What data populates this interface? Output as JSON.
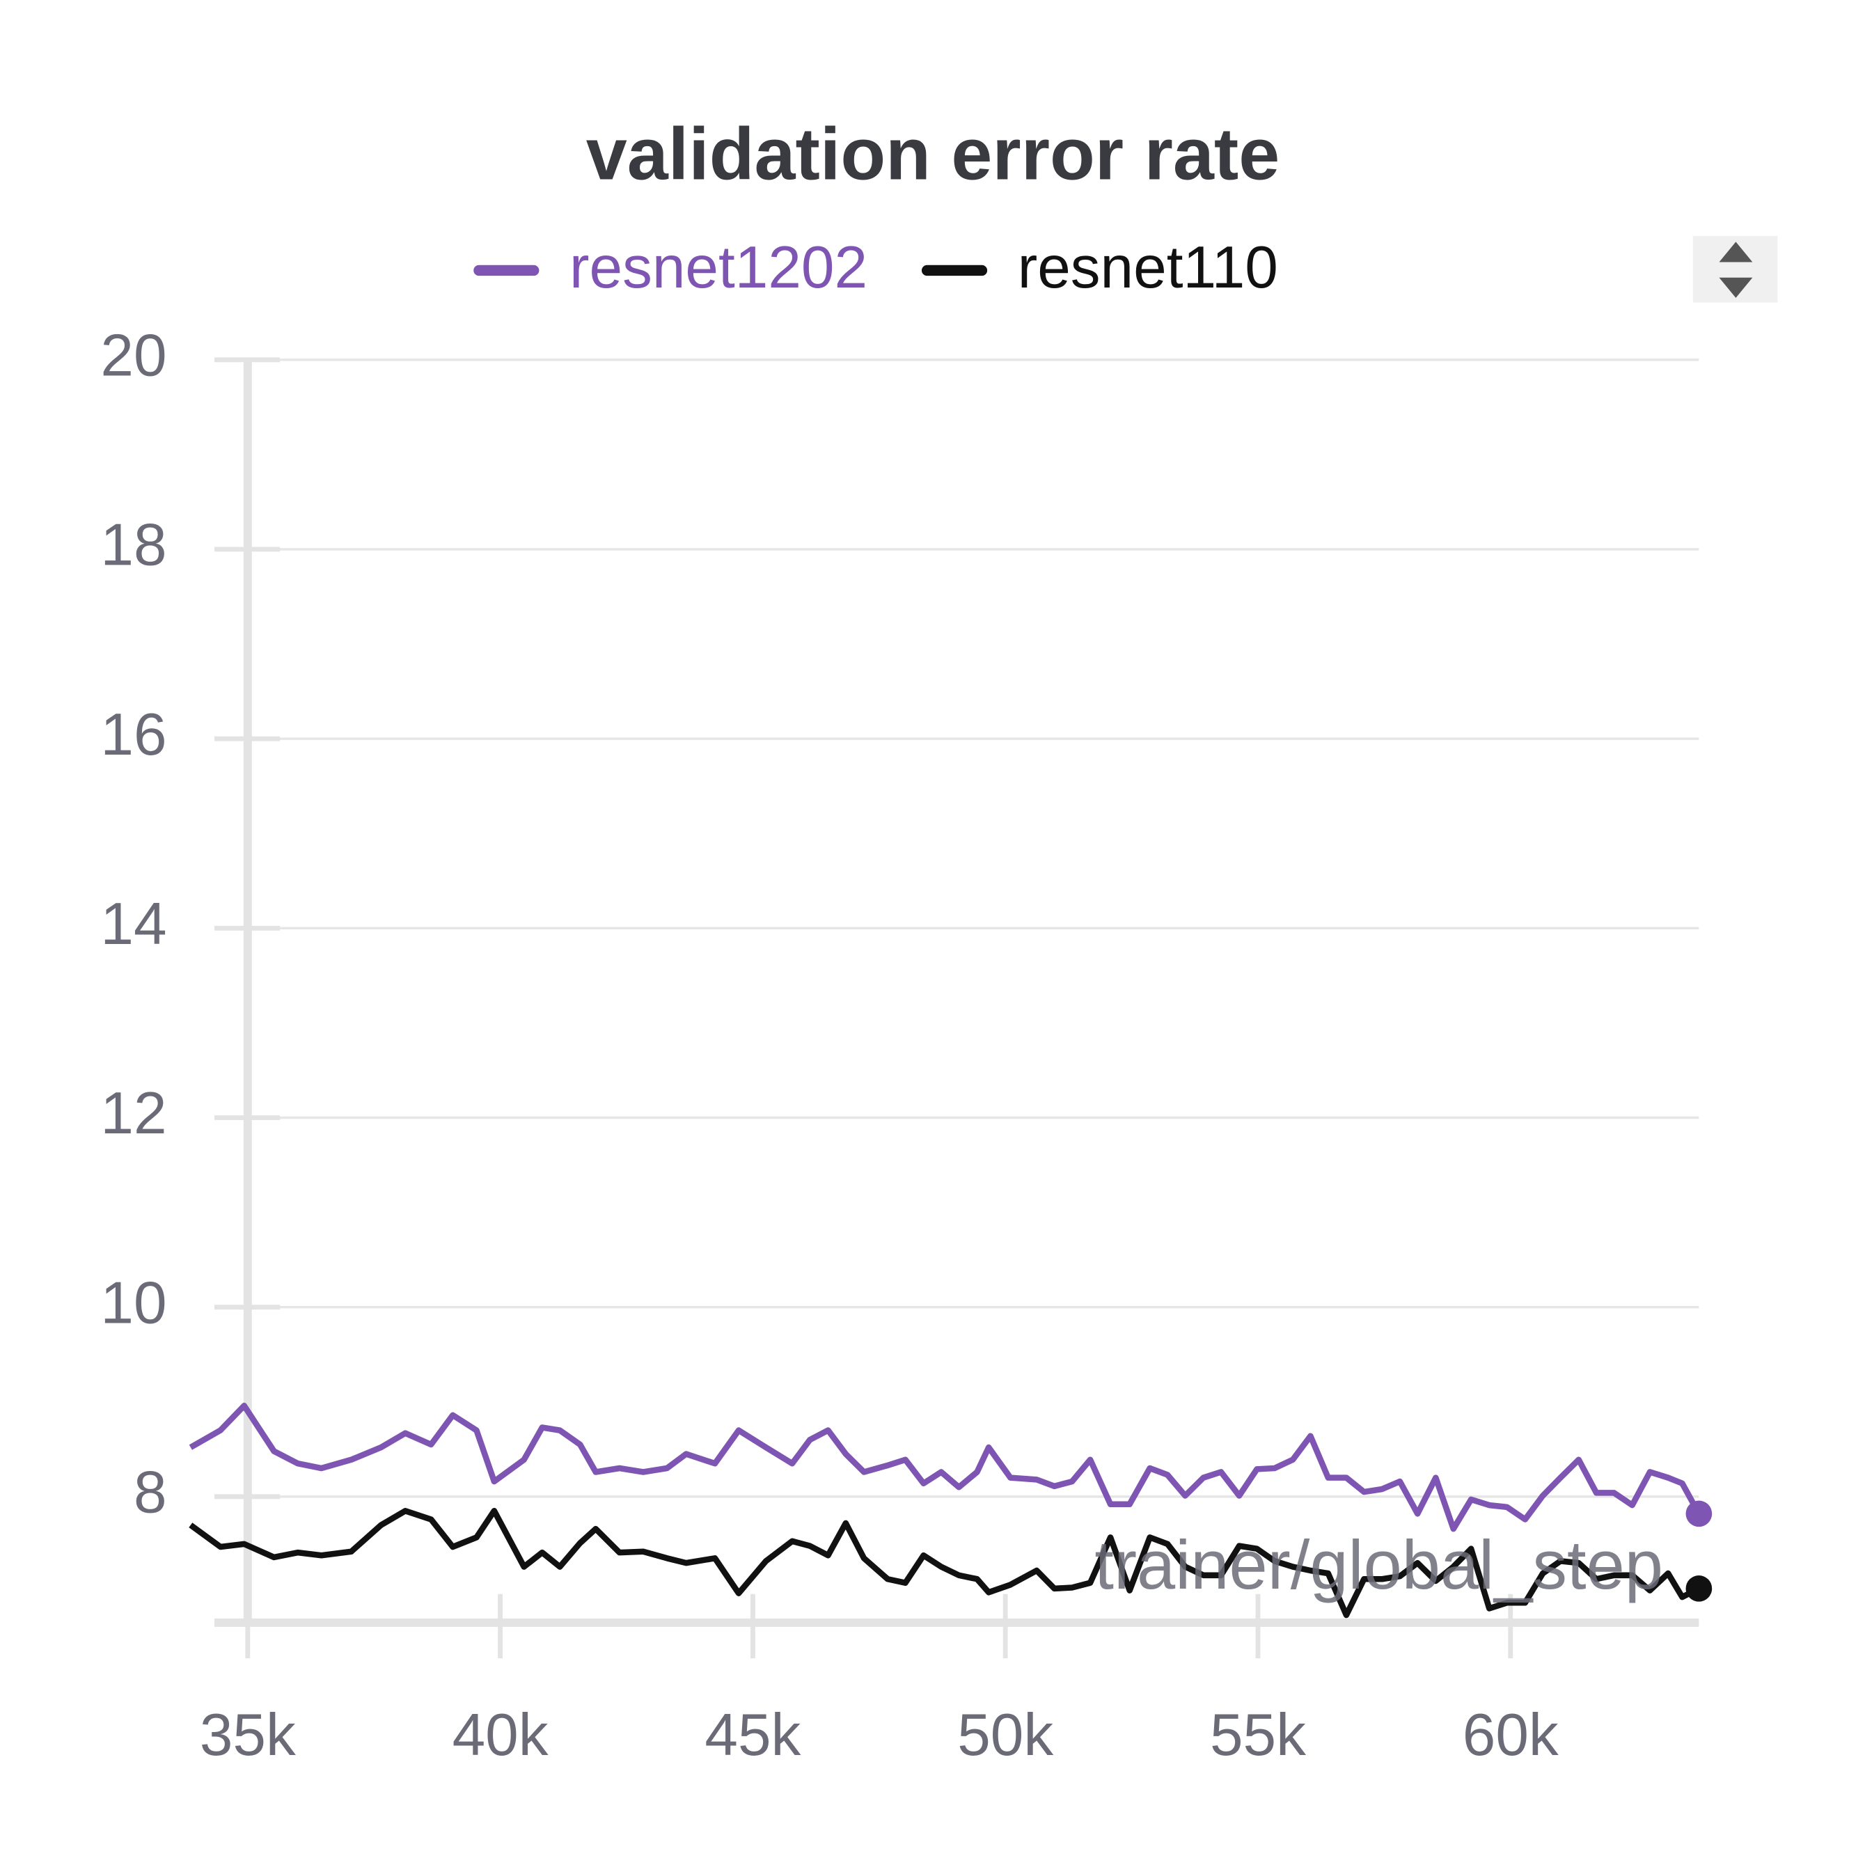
{
  "chart_data": {
    "type": "line",
    "title": "validation error rate",
    "x_label": "trainer/global_step",
    "x": [
      33870,
      34460,
      34930,
      35520,
      35990,
      36460,
      37050,
      37640,
      38120,
      38630,
      39060,
      39530,
      39880,
      40470,
      40830,
      41180,
      41580,
      41890,
      42360,
      42830,
      43300,
      43680,
      44250,
      44720,
      45260,
      45780,
      46130,
      46490,
      46840,
      47200,
      47670,
      48020,
      48380,
      48730,
      49080,
      49440,
      49670,
      50100,
      50620,
      50970,
      51320,
      51680,
      52080,
      52460,
      52860,
      53210,
      53560,
      53920,
      54270,
      54630,
      54980,
      55330,
      55690,
      56040,
      56390,
      56750,
      57100,
      57460,
      57810,
      58160,
      58520,
      58870,
      59220,
      59580,
      59930,
      60290,
      60640,
      60990,
      61350,
      61700,
      62050,
      62410,
      62760,
      63120,
      63400,
      63730
    ],
    "series": [
      {
        "name": "resnet1202",
        "color": "#7e55b3",
        "values": [
          8.52,
          8.7,
          8.96,
          8.48,
          8.35,
          8.3,
          8.39,
          8.52,
          8.67,
          8.55,
          8.86,
          8.7,
          8.16,
          8.39,
          8.73,
          8.7,
          8.55,
          8.26,
          8.3,
          8.26,
          8.3,
          8.45,
          8.35,
          8.7,
          8.52,
          8.35,
          8.6,
          8.7,
          8.45,
          8.26,
          8.33,
          8.39,
          8.14,
          8.26,
          8.1,
          8.26,
          8.52,
          8.2,
          8.18,
          8.11,
          8.16,
          8.39,
          7.92,
          7.92,
          8.3,
          8.23,
          8.01,
          8.2,
          8.26,
          8.01,
          8.29,
          8.3,
          8.39,
          8.64,
          8.2,
          8.2,
          8.05,
          8.08,
          8.16,
          7.82,
          8.2,
          7.66,
          7.97,
          7.91,
          7.89,
          7.76,
          8.01,
          8.2,
          8.39,
          8.04,
          8.04,
          7.91,
          8.26,
          8.2,
          8.14,
          7.82
        ]
      },
      {
        "name": "resnet110",
        "color": "#111111",
        "values": [
          7.7,
          7.47,
          7.5,
          7.36,
          7.41,
          7.38,
          7.42,
          7.7,
          7.85,
          7.76,
          7.47,
          7.57,
          7.85,
          7.26,
          7.41,
          7.26,
          7.51,
          7.66,
          7.41,
          7.42,
          7.35,
          7.3,
          7.35,
          6.98,
          7.32,
          7.53,
          7.48,
          7.38,
          7.72,
          7.35,
          7.13,
          7.09,
          7.38,
          7.26,
          7.17,
          7.13,
          6.99,
          7.07,
          7.22,
          7.03,
          7.04,
          7.09,
          7.57,
          7.01,
          7.57,
          7.5,
          7.26,
          7.17,
          7.17,
          7.48,
          7.45,
          7.32,
          7.26,
          7.22,
          7.19,
          6.75,
          7.13,
          7.13,
          7.16,
          7.3,
          7.11,
          7.26,
          7.45,
          6.82,
          6.88,
          6.88,
          7.19,
          7.32,
          7.3,
          7.13,
          7.17,
          7.17,
          7.01,
          7.19,
          6.94,
          7.03
        ]
      }
    ],
    "xlim": [
      33870,
      63730
    ],
    "xticks": [
      {
        "value": 35000,
        "label": "35k"
      },
      {
        "value": 40000,
        "label": "40k"
      },
      {
        "value": 45000,
        "label": "45k"
      },
      {
        "value": 50000,
        "label": "50k"
      },
      {
        "value": 55000,
        "label": "55k"
      },
      {
        "value": 60000,
        "label": "60k"
      }
    ],
    "ylim": [
      6.67,
      20
    ],
    "yticks": [
      8,
      10,
      12,
      14,
      16,
      18,
      20
    ],
    "grid": true
  }
}
